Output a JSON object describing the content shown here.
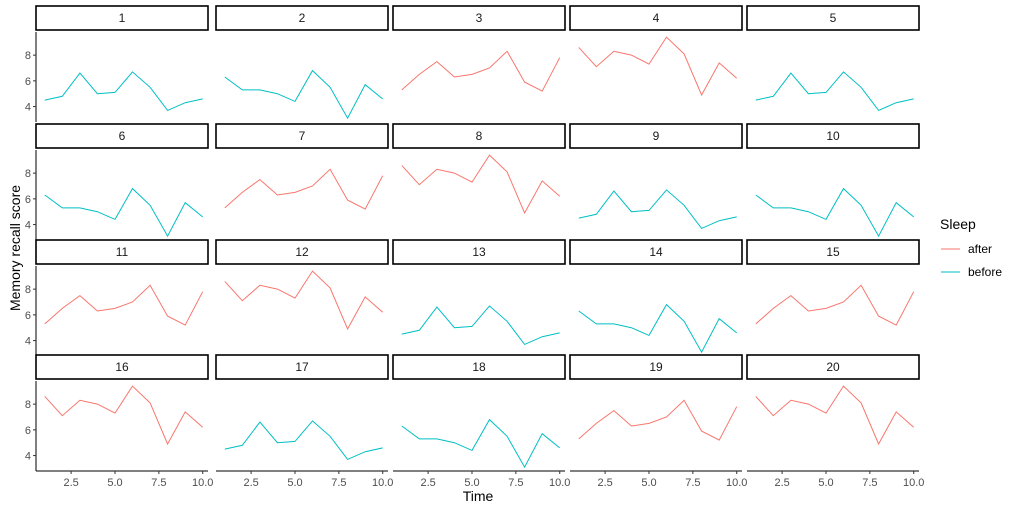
{
  "chart_data": {
    "type": "line",
    "xlabel": "Time",
    "ylabel": "Memory recall score",
    "x": [
      1,
      2,
      3,
      4,
      5,
      6,
      7,
      8,
      9,
      10
    ],
    "xlim": [
      0.5,
      10.3
    ],
    "ylim": [
      2.8,
      9.8
    ],
    "x_ticks": [
      2.5,
      5.0,
      7.5,
      10.0
    ],
    "x_tick_labels": [
      "2.5",
      "5.0",
      "7.5",
      "10.0"
    ],
    "y_ticks": [
      4,
      6,
      8
    ],
    "y_tick_labels": [
      "4",
      "6",
      "8"
    ],
    "grid": false,
    "legend": {
      "title": "Sleep",
      "position": "right",
      "entries": [
        {
          "label": "after",
          "color": "#F8766D"
        },
        {
          "label": "before",
          "color": "#00BFC4"
        }
      ]
    },
    "patterns": {
      "A": [
        4.5,
        4.8,
        6.6,
        5.0,
        5.1,
        6.7,
        5.5,
        3.7,
        4.3,
        4.6
      ],
      "B": [
        6.3,
        5.3,
        5.3,
        5.0,
        4.4,
        6.8,
        5.5,
        3.1,
        5.7,
        4.6
      ],
      "C": [
        5.3,
        6.5,
        7.5,
        6.3,
        6.5,
        7.0,
        8.3,
        5.9,
        5.2,
        7.8
      ],
      "D": [
        8.6,
        7.1,
        8.3,
        8.0,
        7.3,
        9.4,
        8.1,
        4.9,
        7.4,
        6.2
      ]
    },
    "panels": [
      {
        "label": "1",
        "sleep": "before",
        "pattern": "A"
      },
      {
        "label": "2",
        "sleep": "before",
        "pattern": "B"
      },
      {
        "label": "3",
        "sleep": "after",
        "pattern": "C"
      },
      {
        "label": "4",
        "sleep": "after",
        "pattern": "D"
      },
      {
        "label": "5",
        "sleep": "before",
        "pattern": "A"
      },
      {
        "label": "6",
        "sleep": "before",
        "pattern": "B"
      },
      {
        "label": "7",
        "sleep": "after",
        "pattern": "C"
      },
      {
        "label": "8",
        "sleep": "after",
        "pattern": "D"
      },
      {
        "label": "9",
        "sleep": "before",
        "pattern": "A"
      },
      {
        "label": "10",
        "sleep": "before",
        "pattern": "B"
      },
      {
        "label": "11",
        "sleep": "after",
        "pattern": "C"
      },
      {
        "label": "12",
        "sleep": "after",
        "pattern": "D"
      },
      {
        "label": "13",
        "sleep": "before",
        "pattern": "A"
      },
      {
        "label": "14",
        "sleep": "before",
        "pattern": "B"
      },
      {
        "label": "15",
        "sleep": "after",
        "pattern": "C"
      },
      {
        "label": "16",
        "sleep": "after",
        "pattern": "D"
      },
      {
        "label": "17",
        "sleep": "before",
        "pattern": "A"
      },
      {
        "label": "18",
        "sleep": "before",
        "pattern": "B"
      },
      {
        "label": "19",
        "sleep": "after",
        "pattern": "C"
      },
      {
        "label": "20",
        "sleep": "after",
        "pattern": "D"
      }
    ]
  }
}
